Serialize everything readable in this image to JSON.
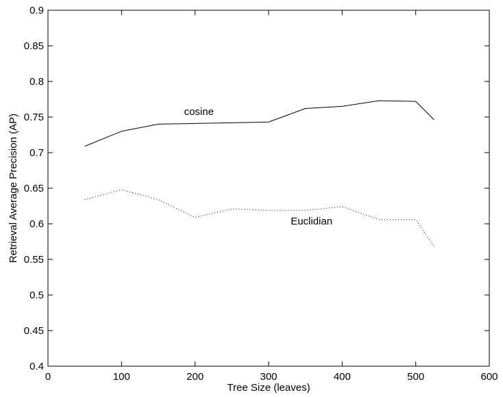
{
  "chart_data": {
    "type": "line",
    "title": "",
    "xlabel": "Tree Size (leaves)",
    "ylabel": "Retrieval Average Precision (AP)",
    "xlim": [
      0,
      600
    ],
    "ylim": [
      0.4,
      0.9
    ],
    "x_ticks": [
      0,
      100,
      200,
      300,
      400,
      500,
      600
    ],
    "x_tick_labels": [
      "0",
      "100",
      "200",
      "300",
      "400",
      "500",
      "600"
    ],
    "y_ticks": [
      0.4,
      0.45,
      0.5,
      0.55,
      0.6,
      0.65,
      0.7,
      0.75,
      0.8,
      0.85,
      0.9
    ],
    "y_tick_labels": [
      "0.4",
      "0.45",
      "0.5",
      "0.55",
      "0.6",
      "0.65",
      "0.7",
      "0.75",
      "0.8",
      "0.85",
      "0.9"
    ],
    "grid": false,
    "legend": "none",
    "series": [
      {
        "name": "cosine",
        "line_style": "solid",
        "color": "#000000",
        "x": [
          50,
          100,
          150,
          200,
          250,
          300,
          350,
          400,
          450,
          500,
          525
        ],
        "y": [
          0.709,
          0.73,
          0.74,
          0.741,
          0.742,
          0.743,
          0.762,
          0.765,
          0.773,
          0.772,
          0.746
        ],
        "label_anchor": {
          "x": 185,
          "y": 0.753
        }
      },
      {
        "name": "Euclidian",
        "line_style": "dotted",
        "color": "#000000",
        "x": [
          50,
          100,
          150,
          200,
          250,
          300,
          350,
          400,
          450,
          500,
          525
        ],
        "y": [
          0.634,
          0.648,
          0.634,
          0.609,
          0.621,
          0.619,
          0.619,
          0.624,
          0.606,
          0.606,
          0.568
        ],
        "label_anchor": {
          "x": 330,
          "y": 0.599
        }
      }
    ]
  }
}
